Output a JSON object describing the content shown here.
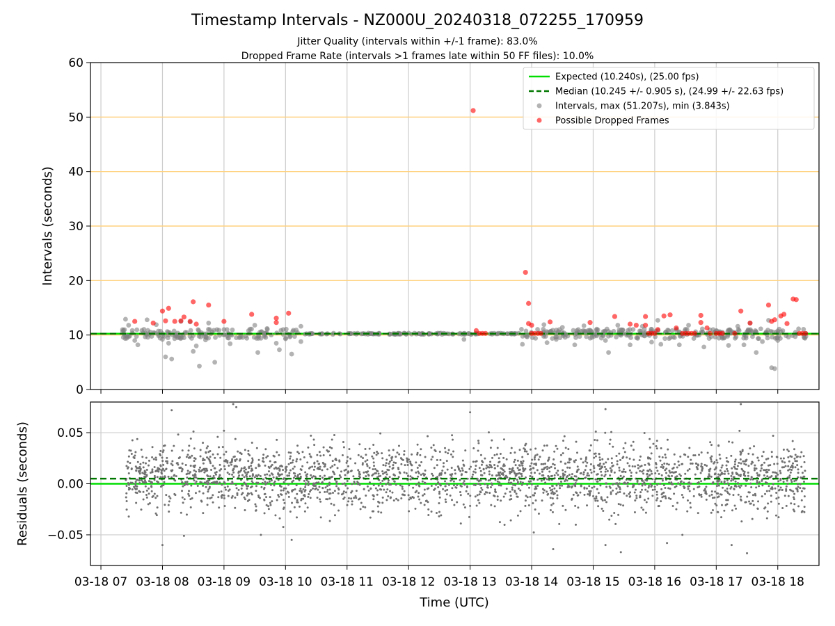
{
  "title": "Timestamp Intervals - NZ000U_20240318_072255_170959",
  "subtitle1": "Jitter Quality (intervals within +/-1 frame): 83.0%",
  "subtitle2": "Dropped Frame Rate (intervals >1 frames late within 50 FF files): 10.0%",
  "xlabel": "Time (UTC)",
  "chart_data": [
    {
      "type": "scatter",
      "ylabel": "Intervals (seconds)",
      "ylim": [
        0,
        60
      ],
      "yticks": [
        0,
        10,
        20,
        30,
        40,
        50,
        60
      ],
      "xlim": [
        6.83,
        18.67
      ],
      "xticks": [
        7,
        8,
        9,
        10,
        11,
        12,
        13,
        14,
        15,
        16,
        17,
        18
      ],
      "xtick_labels": [
        "03-18 07",
        "03-18 08",
        "03-18 09",
        "03-18 10",
        "03-18 11",
        "03-18 12",
        "03-18 13",
        "03-18 14",
        "03-18 15",
        "03-18 16",
        "03-18 17",
        "03-18 18"
      ],
      "grid": true,
      "horizontal_bands": [
        10,
        20,
        30,
        40,
        50
      ],
      "legend_position": "top-right",
      "series": [
        {
          "name": "Expected (10.240s), (25.00 fps)",
          "kind": "hline",
          "y": 10.24,
          "color": "#00dd00",
          "style": "solid"
        },
        {
          "name": "Median (10.245 +/- 0.905 s), (24.99 +/- 22.63 fps)",
          "kind": "hline",
          "y": 10.245,
          "color": "#007700",
          "style": "dashed"
        },
        {
          "name": "Intervals, max (51.207s), min (3.843s)",
          "kind": "scatter",
          "color": "#808080",
          "points": [
            [
              7.4,
              12.9
            ],
            [
              7.45,
              11.8
            ],
            [
              7.55,
              9.0
            ],
            [
              7.6,
              8.2
            ],
            [
              7.75,
              12.8
            ],
            [
              7.9,
              11.9
            ],
            [
              8.0,
              9.2
            ],
            [
              8.05,
              6.0
            ],
            [
              8.1,
              8.5
            ],
            [
              8.15,
              5.6
            ],
            [
              8.3,
              12.5
            ],
            [
              8.35,
              9.5
            ],
            [
              8.45,
              12.4
            ],
            [
              8.5,
              7.0
            ],
            [
              8.55,
              8.0
            ],
            [
              8.6,
              4.3
            ],
            [
              8.7,
              9.1
            ],
            [
              8.75,
              12.2
            ],
            [
              8.85,
              5.0
            ],
            [
              9.0,
              11.0
            ],
            [
              9.1,
              8.4
            ],
            [
              9.2,
              9.5
            ],
            [
              9.4,
              10.8
            ],
            [
              9.5,
              11.8
            ],
            [
              9.55,
              6.8
            ],
            [
              9.7,
              11.2
            ],
            [
              9.85,
              8.5
            ],
            [
              9.9,
              7.3
            ],
            [
              10.0,
              9.3
            ],
            [
              10.1,
              6.5
            ],
            [
              10.25,
              8.8
            ],
            [
              10.25,
              11.6
            ],
            [
              12.9,
              9.2
            ],
            [
              13.85,
              8.3
            ],
            [
              14.2,
              11.9
            ],
            [
              14.25,
              8.6
            ],
            [
              14.4,
              9.2
            ],
            [
              14.5,
              11.4
            ],
            [
              14.7,
              8.2
            ],
            [
              14.85,
              11.7
            ],
            [
              15.05,
              10.9
            ],
            [
              15.2,
              9.0
            ],
            [
              15.25,
              6.8
            ],
            [
              15.4,
              11.8
            ],
            [
              15.6,
              8.2
            ],
            [
              15.8,
              11.6
            ],
            [
              15.95,
              8.7
            ],
            [
              16.05,
              12.7
            ],
            [
              16.1,
              8.3
            ],
            [
              16.4,
              8.2
            ],
            [
              16.55,
              11.8
            ],
            [
              16.8,
              7.8
            ],
            [
              16.95,
              11.0
            ],
            [
              17.1,
              9.4
            ],
            [
              17.2,
              8.1
            ],
            [
              17.35,
              11.6
            ],
            [
              17.45,
              8.2
            ],
            [
              17.55,
              12.2
            ],
            [
              17.65,
              6.8
            ],
            [
              17.75,
              8.8
            ],
            [
              17.85,
              12.7
            ],
            [
              17.9,
              4.0
            ],
            [
              17.95,
              3.84
            ],
            [
              18.0,
              9.0
            ]
          ]
        },
        {
          "name": "Possible Dropped Frames",
          "kind": "scatter",
          "color": "#ff0000",
          "points": [
            [
              7.55,
              12.5
            ],
            [
              7.85,
              12.2
            ],
            [
              8.0,
              14.4
            ],
            [
              8.05,
              12.6
            ],
            [
              8.1,
              14.9
            ],
            [
              8.2,
              12.5
            ],
            [
              8.3,
              12.6
            ],
            [
              8.35,
              13.3
            ],
            [
              8.45,
              12.5
            ],
            [
              8.5,
              16.1
            ],
            [
              8.55,
              12.0
            ],
            [
              8.75,
              15.5
            ],
            [
              9.0,
              12.5
            ],
            [
              9.45,
              13.8
            ],
            [
              9.85,
              13.1
            ],
            [
              9.85,
              12.3
            ],
            [
              10.05,
              14.0
            ],
            [
              13.05,
              51.2
            ],
            [
              13.1,
              10.8
            ],
            [
              13.15,
              10.3
            ],
            [
              13.2,
              10.3
            ],
            [
              13.25,
              10.3
            ],
            [
              13.9,
              21.5
            ],
            [
              13.95,
              15.8
            ],
            [
              13.95,
              12.1
            ],
            [
              14.0,
              11.8
            ],
            [
              14.0,
              10.3
            ],
            [
              14.05,
              10.3
            ],
            [
              14.1,
              10.3
            ],
            [
              14.15,
              10.3
            ],
            [
              14.3,
              12.4
            ],
            [
              14.95,
              12.3
            ],
            [
              15.35,
              13.4
            ],
            [
              15.6,
              12.0
            ],
            [
              15.7,
              11.8
            ],
            [
              15.85,
              13.4
            ],
            [
              15.85,
              11.8
            ],
            [
              15.9,
              10.3
            ],
            [
              15.95,
              10.3
            ],
            [
              16.0,
              10.3
            ],
            [
              16.05,
              11.0
            ],
            [
              16.15,
              13.5
            ],
            [
              16.25,
              13.7
            ],
            [
              16.35,
              11.3
            ],
            [
              16.45,
              10.3
            ],
            [
              16.5,
              10.3
            ],
            [
              16.55,
              10.3
            ],
            [
              16.6,
              10.3
            ],
            [
              16.65,
              10.3
            ],
            [
              16.75,
              13.6
            ],
            [
              16.75,
              12.3
            ],
            [
              16.85,
              11.3
            ],
            [
              16.9,
              10.3
            ],
            [
              17.0,
              10.3
            ],
            [
              17.05,
              10.3
            ],
            [
              17.1,
              10.3
            ],
            [
              17.3,
              10.3
            ],
            [
              17.4,
              14.4
            ],
            [
              17.55,
              12.2
            ],
            [
              17.85,
              15.5
            ],
            [
              17.9,
              12.5
            ],
            [
              17.95,
              12.8
            ],
            [
              18.05,
              13.5
            ],
            [
              18.1,
              13.8
            ],
            [
              18.15,
              12.1
            ],
            [
              18.25,
              16.6
            ],
            [
              18.3,
              16.5
            ],
            [
              18.35,
              10.3
            ],
            [
              18.4,
              10.3
            ],
            [
              18.45,
              10.3
            ]
          ]
        }
      ]
    },
    {
      "type": "scatter",
      "ylabel": "Residuals (seconds)",
      "ylim": [
        -0.08,
        0.08
      ],
      "yticks": [
        -0.05,
        0.0,
        0.05
      ],
      "ytick_labels": [
        "−0.05",
        "0.00",
        "0.05"
      ],
      "xlim": [
        6.83,
        18.67
      ],
      "grid": true,
      "series": [
        {
          "name": "Residual zero",
          "kind": "hline",
          "y": 0.0,
          "color": "#00dd00",
          "style": "solid"
        },
        {
          "name": "Median residual",
          "kind": "hline",
          "y": 0.005,
          "color": "#007700",
          "style": "dashed"
        },
        {
          "name": "Residuals",
          "kind": "scatter",
          "color": "#707070",
          "x_range": [
            7.4,
            18.45
          ],
          "count": 2600,
          "spread": 0.022,
          "outliers": [
            [
              8.15,
              0.072
            ],
            [
              9.15,
              0.078
            ],
            [
              9.2,
              0.075
            ],
            [
              13.0,
              0.07
            ],
            [
              15.2,
              0.073
            ],
            [
              17.4,
              0.078
            ],
            [
              8.0,
              -0.06
            ],
            [
              8.35,
              -0.051
            ],
            [
              9.6,
              -0.05
            ],
            [
              10.1,
              -0.055
            ],
            [
              14.35,
              -0.064
            ],
            [
              15.2,
              -0.06
            ],
            [
              15.45,
              -0.067
            ],
            [
              16.2,
              -0.058
            ],
            [
              16.45,
              -0.05
            ],
            [
              17.25,
              -0.06
            ],
            [
              17.5,
              -0.068
            ]
          ]
        }
      ]
    }
  ]
}
